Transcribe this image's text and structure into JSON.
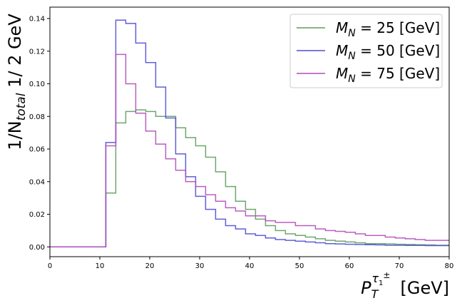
{
  "chart_data": {
    "type": "line",
    "subtype": "step-histogram",
    "title": "",
    "ylabel_parts": {
      "prefix": "1/N",
      "sub": "total",
      "suffix": " 1/ 2 GeV"
    },
    "xlabel_parts": {
      "P": "P",
      "sub": "T",
      "sup_tau": "τ",
      "sup_tau_sub": "1",
      "sup_pm": "±",
      "unit": "[GeV]"
    },
    "xlim": [
      0,
      80
    ],
    "ylim": [
      -0.006,
      0.147
    ],
    "xticks": [
      0,
      10,
      20,
      30,
      40,
      50,
      60,
      70,
      80
    ],
    "xtick_labels": [
      "0",
      "10",
      "20",
      "30",
      "40",
      "50",
      "60",
      "70",
      "80"
    ],
    "yticks": [
      0.0,
      0.02,
      0.04,
      0.06,
      0.08,
      0.1,
      0.12,
      0.14
    ],
    "ytick_labels": [
      "0.00",
      "0.02",
      "0.04",
      "0.06",
      "0.08",
      "0.10",
      "0.12",
      "0.14"
    ],
    "grid": false,
    "legend_position": "top-right",
    "bin_edges": [
      0,
      1.6,
      3.2,
      4.8,
      6.4,
      8.0,
      9.6,
      11.2,
      13.2,
      15.2,
      17.2,
      19.2,
      21.2,
      23.2,
      25.2,
      27.2,
      29.2,
      31.2,
      33.2,
      35.2,
      37.2,
      39.2,
      41.2,
      43.2,
      45.2,
      47.2,
      49.2,
      51.2,
      53.2,
      55.2,
      57.2,
      59.2,
      61.2,
      63.2,
      65.2,
      67.2,
      69.2,
      71.2,
      73.2,
      75.2,
      77.2,
      80.0
    ],
    "series": [
      {
        "name_parts": {
          "M": "M",
          "sub": "N",
          "rest": " = 25 [GeV]"
        },
        "color": "#5e9c5e",
        "values": [
          0,
          0,
          0,
          0,
          0,
          0,
          0,
          0.033,
          0.076,
          0.083,
          0.084,
          0.083,
          0.08,
          0.08,
          0.073,
          0.067,
          0.062,
          0.055,
          0.046,
          0.037,
          0.028,
          0.023,
          0.017,
          0.013,
          0.01,
          0.008,
          0.007,
          0.006,
          0.005,
          0.004,
          0.0035,
          0.003,
          0.0025,
          0.002,
          0.002,
          0.0018,
          0.0016,
          0.0015,
          0.0013,
          0.0012,
          0.001
        ]
      },
      {
        "name_parts": {
          "M": "M",
          "sub": "N",
          "rest": " = 50 [GeV]"
        },
        "color": "#4e4ed4",
        "values": [
          0,
          0,
          0,
          0,
          0,
          0,
          0,
          0.064,
          0.139,
          0.137,
          0.125,
          0.113,
          0.098,
          0.079,
          0.057,
          0.043,
          0.031,
          0.023,
          0.017,
          0.013,
          0.011,
          0.008,
          0.007,
          0.0055,
          0.0045,
          0.004,
          0.0035,
          0.003,
          0.0025,
          0.002,
          0.0018,
          0.0016,
          0.0015,
          0.0013,
          0.0012,
          0.001,
          0.001,
          0.0009,
          0.0009,
          0.0008,
          0.0008
        ]
      },
      {
        "name_parts": {
          "M": "M",
          "sub": "N",
          "rest": " = 75 [GeV]"
        },
        "color": "#b04eb8",
        "values": [
          0,
          0,
          0,
          0,
          0,
          0,
          0,
          0.062,
          0.118,
          0.1,
          0.082,
          0.071,
          0.063,
          0.054,
          0.047,
          0.04,
          0.037,
          0.032,
          0.028,
          0.024,
          0.022,
          0.019,
          0.019,
          0.016,
          0.015,
          0.015,
          0.013,
          0.013,
          0.011,
          0.01,
          0.0095,
          0.009,
          0.008,
          0.007,
          0.007,
          0.006,
          0.0055,
          0.005,
          0.0045,
          0.004,
          0.004
        ]
      }
    ]
  }
}
